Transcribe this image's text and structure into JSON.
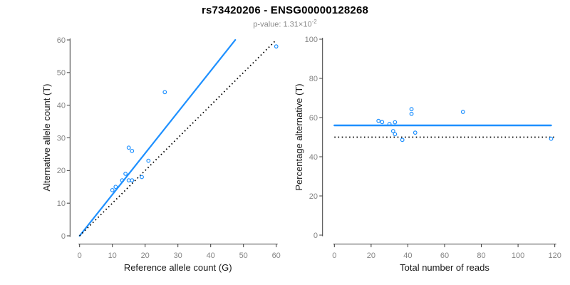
{
  "header": {
    "title": "rs73420206 - ENSG00000128268",
    "pvalue": {
      "base": "p-value: 1.31×10",
      "exponent": "-2"
    }
  },
  "colors": {
    "accent_blue": "#1E90FF",
    "dotted_line": "#000000",
    "tick_label": "#848484",
    "axis_line": "#3c3c3c",
    "axis_title": "#1a1a1a",
    "subtitle_gray": "#8a8a8a",
    "background": "#ffffff"
  },
  "chart_data": [
    {
      "type": "scatter",
      "panel": "left",
      "xlabel": "Reference allele count (G)",
      "ylabel": "Alternative allele count (T)",
      "xlim": [
        0,
        60
      ],
      "ylim": [
        0,
        60
      ],
      "xticks": [
        0,
        10,
        20,
        30,
        40,
        50,
        60
      ],
      "yticks": [
        0,
        10,
        20,
        30,
        40,
        50,
        60
      ],
      "grid": false,
      "marker": "open-circle",
      "points": [
        {
          "x": 10,
          "y": 14
        },
        {
          "x": 11,
          "y": 15
        },
        {
          "x": 13,
          "y": 17
        },
        {
          "x": 14,
          "y": 19
        },
        {
          "x": 15,
          "y": 17
        },
        {
          "x": 16,
          "y": 17
        },
        {
          "x": 15,
          "y": 27
        },
        {
          "x": 16,
          "y": 26
        },
        {
          "x": 19,
          "y": 18
        },
        {
          "x": 21,
          "y": 23
        },
        {
          "x": 26,
          "y": 44
        },
        {
          "x": 60,
          "y": 58
        }
      ],
      "lines": [
        {
          "name": "fit-line",
          "style": "solid",
          "color": "accent_blue",
          "x1": 0,
          "y1": 0,
          "x2": 47.5,
          "y2": 60
        },
        {
          "name": "identity-line",
          "style": "dotted",
          "color": "dotted_line",
          "x1": 0,
          "y1": 0,
          "x2": 60,
          "y2": 60
        }
      ]
    },
    {
      "type": "scatter",
      "panel": "right",
      "xlabel": "Total number of reads",
      "ylabel": "Percentage alternative (T)",
      "xlim": [
        0,
        120
      ],
      "ylim": [
        0,
        100
      ],
      "xticks": [
        0,
        20,
        40,
        60,
        80,
        100,
        120
      ],
      "yticks": [
        0,
        20,
        40,
        60,
        80,
        100
      ],
      "grid": false,
      "marker": "open-circle",
      "points": [
        {
          "x": 24,
          "y": 58.3
        },
        {
          "x": 26,
          "y": 57.7
        },
        {
          "x": 30,
          "y": 56.7
        },
        {
          "x": 33,
          "y": 57.6
        },
        {
          "x": 32,
          "y": 53.1
        },
        {
          "x": 33,
          "y": 51.5
        },
        {
          "x": 42,
          "y": 64.3
        },
        {
          "x": 42,
          "y": 61.9
        },
        {
          "x": 37,
          "y": 48.6
        },
        {
          "x": 44,
          "y": 52.3
        },
        {
          "x": 70,
          "y": 62.9
        },
        {
          "x": 118,
          "y": 49.2
        }
      ],
      "lines": [
        {
          "name": "mean-percentage-line",
          "style": "solid",
          "color": "accent_blue",
          "x1": 0,
          "y1": 56,
          "x2": 118,
          "y2": 56
        },
        {
          "name": "fifty-percent-reference-line",
          "style": "dotted",
          "color": "dotted_line",
          "x1": 0,
          "y1": 50,
          "x2": 120,
          "y2": 50
        }
      ]
    }
  ]
}
